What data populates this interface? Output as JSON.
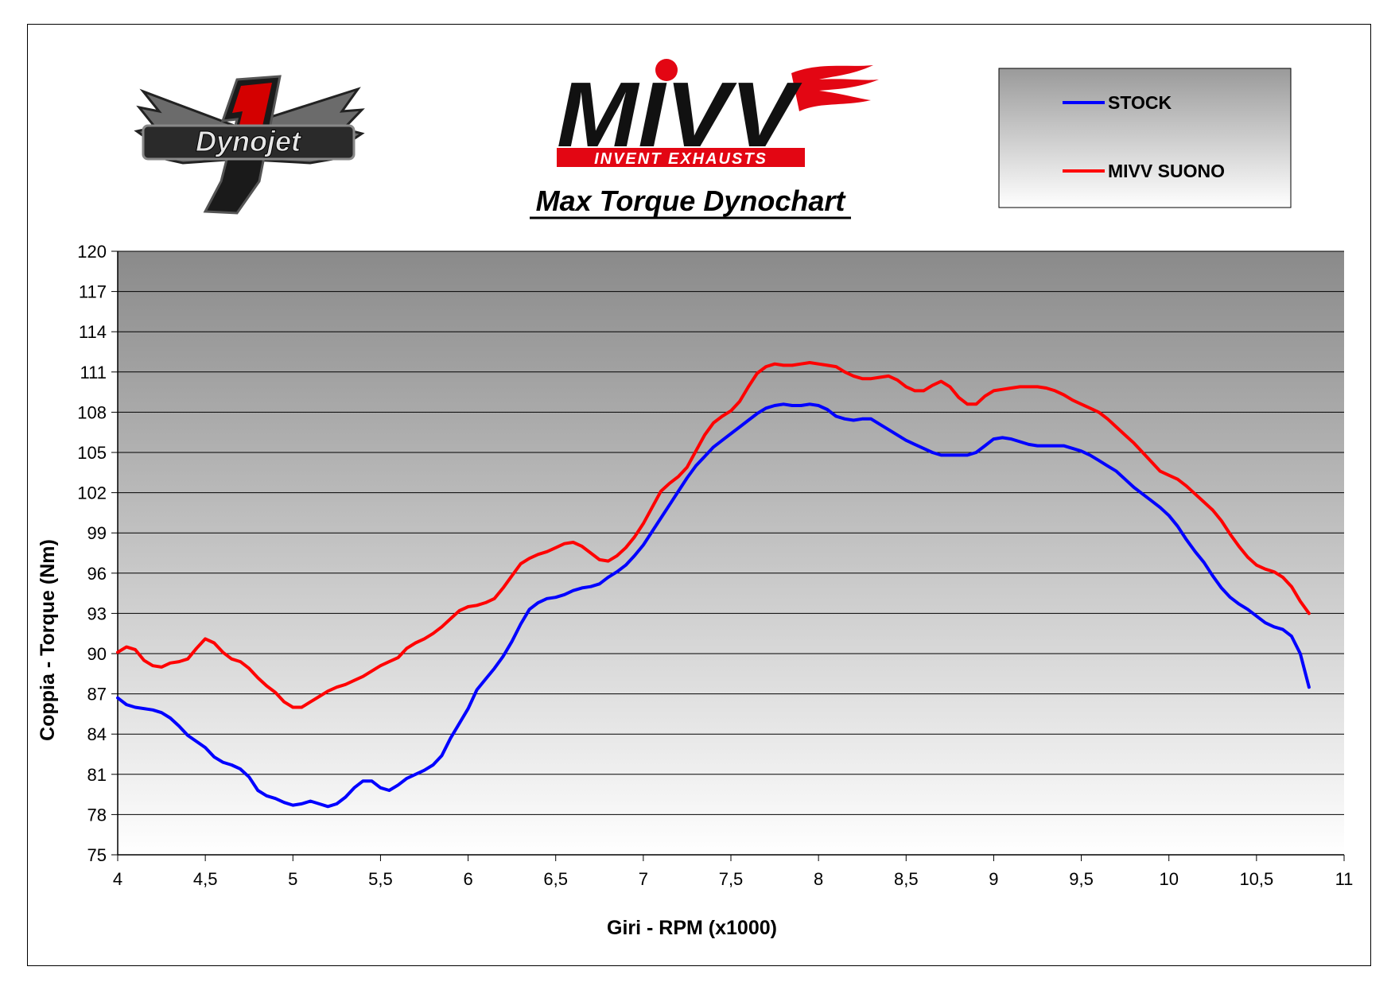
{
  "logos": {
    "dynojet_text": "Dynojet",
    "dynojet_number": "1",
    "mivv_text": "MIVV",
    "mivv_tagline": "INVENT EXHAUSTS"
  },
  "colors": {
    "stock": "#0000ff",
    "mivv": "#ff0000",
    "mivv_brand_red": "#e30613"
  },
  "chart_data": {
    "type": "line",
    "title": "Max Torque Dynochart",
    "xlabel": "Giri - RPM (x1000)",
    "ylabel": "Coppia - Torque (Nm)",
    "xlim": [
      4,
      11
    ],
    "ylim": [
      75,
      120
    ],
    "x_ticks": [
      "4",
      "4,5",
      "5",
      "5,5",
      "6",
      "6,5",
      "7",
      "7,5",
      "8",
      "8,5",
      "9",
      "9,5",
      "10",
      "10,5",
      "11"
    ],
    "y_ticks": [
      "75",
      "78",
      "81",
      "84",
      "87",
      "90",
      "93",
      "96",
      "99",
      "102",
      "105",
      "108",
      "111",
      "114",
      "117",
      "120"
    ],
    "grid": true,
    "legend_position": "top-right",
    "series": [
      {
        "name": "STOCK",
        "color": "#0000ff",
        "points": [
          [
            4.0,
            86.7
          ],
          [
            4.05,
            86.2
          ],
          [
            4.1,
            86.0
          ],
          [
            4.2,
            85.8
          ],
          [
            4.25,
            85.6
          ],
          [
            4.3,
            85.2
          ],
          [
            4.35,
            84.6
          ],
          [
            4.4,
            83.9
          ],
          [
            4.5,
            83.0
          ],
          [
            4.55,
            82.3
          ],
          [
            4.6,
            81.9
          ],
          [
            4.65,
            81.7
          ],
          [
            4.7,
            81.4
          ],
          [
            4.75,
            80.8
          ],
          [
            4.8,
            79.8
          ],
          [
            4.85,
            79.4
          ],
          [
            4.9,
            79.2
          ],
          [
            4.95,
            78.9
          ],
          [
            5.0,
            78.7
          ],
          [
            5.05,
            78.8
          ],
          [
            5.1,
            79.0
          ],
          [
            5.15,
            78.8
          ],
          [
            5.2,
            78.6
          ],
          [
            5.25,
            78.8
          ],
          [
            5.3,
            79.3
          ],
          [
            5.35,
            80.0
          ],
          [
            5.4,
            80.5
          ],
          [
            5.45,
            80.5
          ],
          [
            5.5,
            80.0
          ],
          [
            5.55,
            79.8
          ],
          [
            5.6,
            80.2
          ],
          [
            5.65,
            80.7
          ],
          [
            5.7,
            81.0
          ],
          [
            5.75,
            81.3
          ],
          [
            5.8,
            81.7
          ],
          [
            5.85,
            82.4
          ],
          [
            5.9,
            83.7
          ],
          [
            5.95,
            84.8
          ],
          [
            6.0,
            85.9
          ],
          [
            6.05,
            87.3
          ],
          [
            6.1,
            88.1
          ],
          [
            6.15,
            88.9
          ],
          [
            6.2,
            89.8
          ],
          [
            6.25,
            90.9
          ],
          [
            6.3,
            92.2
          ],
          [
            6.35,
            93.3
          ],
          [
            6.4,
            93.8
          ],
          [
            6.45,
            94.1
          ],
          [
            6.5,
            94.2
          ],
          [
            6.55,
            94.4
          ],
          [
            6.6,
            94.7
          ],
          [
            6.65,
            94.9
          ],
          [
            6.7,
            95.0
          ],
          [
            6.75,
            95.2
          ],
          [
            6.8,
            95.7
          ],
          [
            6.85,
            96.1
          ],
          [
            6.9,
            96.6
          ],
          [
            6.95,
            97.3
          ],
          [
            7.0,
            98.1
          ],
          [
            7.05,
            99.1
          ],
          [
            7.1,
            100.1
          ],
          [
            7.15,
            101.1
          ],
          [
            7.2,
            102.1
          ],
          [
            7.25,
            103.1
          ],
          [
            7.3,
            104.0
          ],
          [
            7.35,
            104.7
          ],
          [
            7.4,
            105.4
          ],
          [
            7.45,
            105.9
          ],
          [
            7.5,
            106.4
          ],
          [
            7.55,
            106.9
          ],
          [
            7.6,
            107.4
          ],
          [
            7.65,
            107.9
          ],
          [
            7.7,
            108.3
          ],
          [
            7.75,
            108.5
          ],
          [
            7.8,
            108.6
          ],
          [
            7.85,
            108.5
          ],
          [
            7.9,
            108.5
          ],
          [
            7.95,
            108.6
          ],
          [
            8.0,
            108.5
          ],
          [
            8.05,
            108.2
          ],
          [
            8.1,
            107.7
          ],
          [
            8.15,
            107.5
          ],
          [
            8.2,
            107.4
          ],
          [
            8.25,
            107.5
          ],
          [
            8.3,
            107.5
          ],
          [
            8.35,
            107.1
          ],
          [
            8.4,
            106.7
          ],
          [
            8.45,
            106.3
          ],
          [
            8.5,
            105.9
          ],
          [
            8.55,
            105.6
          ],
          [
            8.6,
            105.3
          ],
          [
            8.65,
            105.0
          ],
          [
            8.7,
            104.8
          ],
          [
            8.75,
            104.8
          ],
          [
            8.8,
            104.8
          ],
          [
            8.85,
            104.8
          ],
          [
            8.9,
            105.0
          ],
          [
            8.95,
            105.5
          ],
          [
            9.0,
            106.0
          ],
          [
            9.05,
            106.1
          ],
          [
            9.1,
            106.0
          ],
          [
            9.15,
            105.8
          ],
          [
            9.2,
            105.6
          ],
          [
            9.25,
            105.5
          ],
          [
            9.3,
            105.5
          ],
          [
            9.35,
            105.5
          ],
          [
            9.4,
            105.5
          ],
          [
            9.45,
            105.3
          ],
          [
            9.5,
            105.1
          ],
          [
            9.55,
            104.8
          ],
          [
            9.6,
            104.4
          ],
          [
            9.65,
            104.0
          ],
          [
            9.7,
            103.6
          ],
          [
            9.75,
            103.0
          ],
          [
            9.8,
            102.4
          ],
          [
            9.85,
            101.9
          ],
          [
            9.9,
            101.4
          ],
          [
            9.95,
            100.9
          ],
          [
            10.0,
            100.3
          ],
          [
            10.05,
            99.5
          ],
          [
            10.1,
            98.5
          ],
          [
            10.15,
            97.6
          ],
          [
            10.2,
            96.8
          ],
          [
            10.25,
            95.8
          ],
          [
            10.3,
            94.9
          ],
          [
            10.35,
            94.2
          ],
          [
            10.4,
            93.7
          ],
          [
            10.45,
            93.3
          ],
          [
            10.5,
            92.8
          ],
          [
            10.55,
            92.3
          ],
          [
            10.6,
            92.0
          ],
          [
            10.65,
            91.8
          ],
          [
            10.7,
            91.3
          ],
          [
            10.75,
            90.0
          ],
          [
            10.8,
            87.5
          ]
        ]
      },
      {
        "name": "MIVV SUONO",
        "color": "#ff0000",
        "points": [
          [
            4.0,
            90.1
          ],
          [
            4.05,
            90.5
          ],
          [
            4.1,
            90.3
          ],
          [
            4.15,
            89.5
          ],
          [
            4.2,
            89.1
          ],
          [
            4.25,
            89.0
          ],
          [
            4.3,
            89.3
          ],
          [
            4.35,
            89.4
          ],
          [
            4.4,
            89.6
          ],
          [
            4.45,
            90.4
          ],
          [
            4.5,
            91.1
          ],
          [
            4.55,
            90.8
          ],
          [
            4.6,
            90.1
          ],
          [
            4.65,
            89.6
          ],
          [
            4.7,
            89.4
          ],
          [
            4.75,
            88.9
          ],
          [
            4.8,
            88.2
          ],
          [
            4.85,
            87.6
          ],
          [
            4.9,
            87.1
          ],
          [
            4.95,
            86.4
          ],
          [
            5.0,
            86.0
          ],
          [
            5.05,
            86.0
          ],
          [
            5.1,
            86.4
          ],
          [
            5.15,
            86.8
          ],
          [
            5.2,
            87.2
          ],
          [
            5.25,
            87.5
          ],
          [
            5.3,
            87.7
          ],
          [
            5.35,
            88.0
          ],
          [
            5.4,
            88.3
          ],
          [
            5.45,
            88.7
          ],
          [
            5.5,
            89.1
          ],
          [
            5.55,
            89.4
          ],
          [
            5.6,
            89.7
          ],
          [
            5.65,
            90.4
          ],
          [
            5.7,
            90.8
          ],
          [
            5.75,
            91.1
          ],
          [
            5.8,
            91.5
          ],
          [
            5.85,
            92.0
          ],
          [
            5.9,
            92.6
          ],
          [
            5.95,
            93.2
          ],
          [
            6.0,
            93.5
          ],
          [
            6.05,
            93.6
          ],
          [
            6.1,
            93.8
          ],
          [
            6.15,
            94.1
          ],
          [
            6.2,
            94.9
          ],
          [
            6.25,
            95.8
          ],
          [
            6.3,
            96.7
          ],
          [
            6.35,
            97.1
          ],
          [
            6.4,
            97.4
          ],
          [
            6.45,
            97.6
          ],
          [
            6.5,
            97.9
          ],
          [
            6.55,
            98.2
          ],
          [
            6.6,
            98.3
          ],
          [
            6.65,
            98.0
          ],
          [
            6.7,
            97.5
          ],
          [
            6.75,
            97.0
          ],
          [
            6.8,
            96.9
          ],
          [
            6.85,
            97.3
          ],
          [
            6.9,
            97.9
          ],
          [
            6.95,
            98.7
          ],
          [
            7.0,
            99.7
          ],
          [
            7.05,
            100.9
          ],
          [
            7.1,
            102.1
          ],
          [
            7.15,
            102.7
          ],
          [
            7.2,
            103.2
          ],
          [
            7.25,
            103.9
          ],
          [
            7.3,
            105.1
          ],
          [
            7.35,
            106.3
          ],
          [
            7.4,
            107.2
          ],
          [
            7.45,
            107.7
          ],
          [
            7.5,
            108.1
          ],
          [
            7.55,
            108.8
          ],
          [
            7.6,
            109.9
          ],
          [
            7.65,
            110.9
          ],
          [
            7.7,
            111.4
          ],
          [
            7.75,
            111.6
          ],
          [
            7.8,
            111.5
          ],
          [
            7.85,
            111.5
          ],
          [
            7.9,
            111.6
          ],
          [
            7.95,
            111.7
          ],
          [
            8.0,
            111.6
          ],
          [
            8.05,
            111.5
          ],
          [
            8.1,
            111.4
          ],
          [
            8.15,
            111.0
          ],
          [
            8.2,
            110.7
          ],
          [
            8.25,
            110.5
          ],
          [
            8.3,
            110.5
          ],
          [
            8.35,
            110.6
          ],
          [
            8.4,
            110.7
          ],
          [
            8.45,
            110.4
          ],
          [
            8.5,
            109.9
          ],
          [
            8.55,
            109.6
          ],
          [
            8.6,
            109.6
          ],
          [
            8.65,
            110.0
          ],
          [
            8.7,
            110.3
          ],
          [
            8.75,
            109.9
          ],
          [
            8.8,
            109.1
          ],
          [
            8.85,
            108.6
          ],
          [
            8.9,
            108.6
          ],
          [
            8.95,
            109.2
          ],
          [
            9.0,
            109.6
          ],
          [
            9.05,
            109.7
          ],
          [
            9.1,
            109.8
          ],
          [
            9.15,
            109.9
          ],
          [
            9.2,
            109.9
          ],
          [
            9.25,
            109.9
          ],
          [
            9.3,
            109.8
          ],
          [
            9.35,
            109.6
          ],
          [
            9.4,
            109.3
          ],
          [
            9.45,
            108.9
          ],
          [
            9.5,
            108.6
          ],
          [
            9.55,
            108.3
          ],
          [
            9.6,
            108.0
          ],
          [
            9.65,
            107.5
          ],
          [
            9.7,
            106.9
          ],
          [
            9.75,
            106.3
          ],
          [
            9.8,
            105.7
          ],
          [
            9.85,
            105.0
          ],
          [
            9.9,
            104.3
          ],
          [
            9.95,
            103.6
          ],
          [
            10.0,
            103.3
          ],
          [
            10.05,
            103.0
          ],
          [
            10.1,
            102.5
          ],
          [
            10.15,
            101.9
          ],
          [
            10.2,
            101.3
          ],
          [
            10.25,
            100.7
          ],
          [
            10.3,
            99.9
          ],
          [
            10.35,
            98.9
          ],
          [
            10.4,
            98.0
          ],
          [
            10.45,
            97.2
          ],
          [
            10.5,
            96.6
          ],
          [
            10.55,
            96.3
          ],
          [
            10.6,
            96.1
          ],
          [
            10.65,
            95.7
          ],
          [
            10.7,
            95.0
          ],
          [
            10.75,
            93.9
          ],
          [
            10.8,
            93.0
          ]
        ]
      }
    ]
  }
}
